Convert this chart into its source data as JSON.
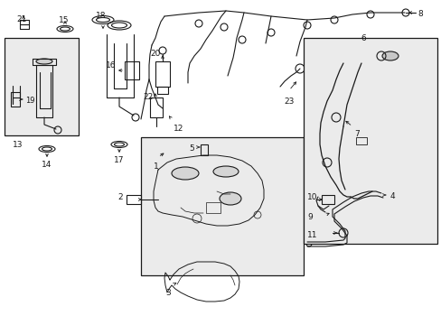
{
  "bg_color": "#ffffff",
  "line_color": "#1a1a1a",
  "shaded_bg": "#ebebeb",
  "fig_width": 4.89,
  "fig_height": 3.6,
  "dpi": 100
}
